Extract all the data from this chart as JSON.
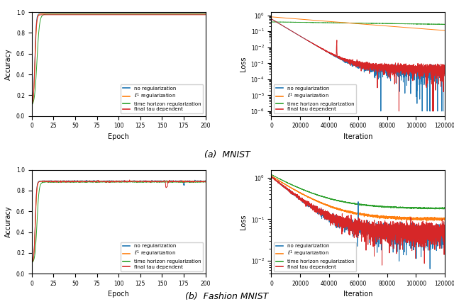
{
  "colors": {
    "blue": "#1f77b4",
    "orange": "#ff7f0e",
    "green": "#2ca02c",
    "red": "#d62728"
  },
  "legend_labels": [
    "no regularization",
    "$\\ell^1$ regularization",
    "time horizon regularization",
    "final tau dependent"
  ],
  "caption_a": "(a)  MNIST",
  "caption_b": "(b)  Fashion MNIST",
  "xlabel_acc": "Epoch",
  "xlabel_loss": "Iteration",
  "ylabel_acc": "Accuracy",
  "ylabel_loss": "Loss",
  "mnist_acc_xlim": [
    0,
    200
  ],
  "mnist_acc_ylim": [
    0.0,
    1.0
  ],
  "mnist_acc_yticks": [
    0.0,
    0.2,
    0.4,
    0.6,
    0.8,
    1.0
  ],
  "mnist_acc_xticks": [
    0,
    25,
    50,
    75,
    100,
    125,
    150,
    175,
    200
  ],
  "mnist_loss_xlim": [
    0,
    120000
  ],
  "mnist_loss_xticks": [
    0,
    20000,
    40000,
    60000,
    80000,
    100000,
    120000
  ],
  "fashion_acc_xlim": [
    0,
    200
  ],
  "fashion_acc_ylim": [
    0.0,
    1.0
  ],
  "fashion_acc_yticks": [
    0.0,
    0.2,
    0.4,
    0.6,
    0.8,
    1.0
  ],
  "fashion_acc_xticks": [
    0,
    25,
    50,
    75,
    100,
    125,
    150,
    175,
    200
  ],
  "fashion_loss_xlim": [
    0,
    120000
  ],
  "fashion_loss_xticks": [
    0,
    20000,
    40000,
    60000,
    80000,
    100000,
    120000
  ]
}
